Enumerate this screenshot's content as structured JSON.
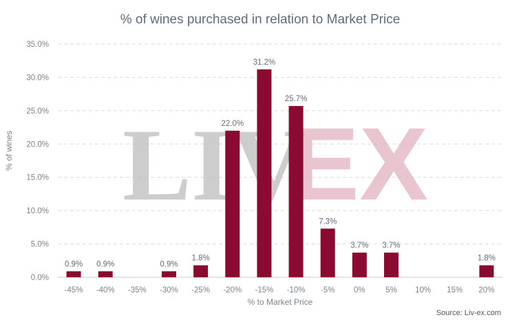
{
  "colors": {
    "bar": "#8b0a31",
    "text": "#5f6b78",
    "grid": "#d9d9d9"
  },
  "watermark": {
    "left": "LIV",
    "right": "EX"
  },
  "source": "Source: Liv-ex.com",
  "chart_data": {
    "type": "bar",
    "title": "% of wines purchased in relation to Market Price",
    "xlabel": "% to Market Price",
    "ylabel": "% of wines",
    "categories": [
      "-45%",
      "-40%",
      "-35%",
      "-30%",
      "-25%",
      "-20%",
      "-15%",
      "-10%",
      "-5%",
      "0%",
      "5%",
      "10%",
      "15%",
      "20%"
    ],
    "values": [
      0.9,
      0.9,
      0,
      0.9,
      1.8,
      22.0,
      31.2,
      25.7,
      7.3,
      3.7,
      3.7,
      0,
      0,
      1.8
    ],
    "data_labels": [
      "0.9%",
      "0.9%",
      "",
      "0.9%",
      "1.8%",
      "22.0%",
      "31.2%",
      "25.7%",
      "7.3%",
      "3.7%",
      "3.7%",
      "",
      "",
      "1.8%"
    ],
    "ylim": [
      0,
      35
    ],
    "yticks": [
      "0.0%",
      "5.0%",
      "10.0%",
      "15.0%",
      "20.0%",
      "25.0%",
      "30.0%",
      "35.0%"
    ],
    "ytick_values": [
      0,
      5,
      10,
      15,
      20,
      25,
      30,
      35
    ],
    "grid": true,
    "legend": "none"
  }
}
